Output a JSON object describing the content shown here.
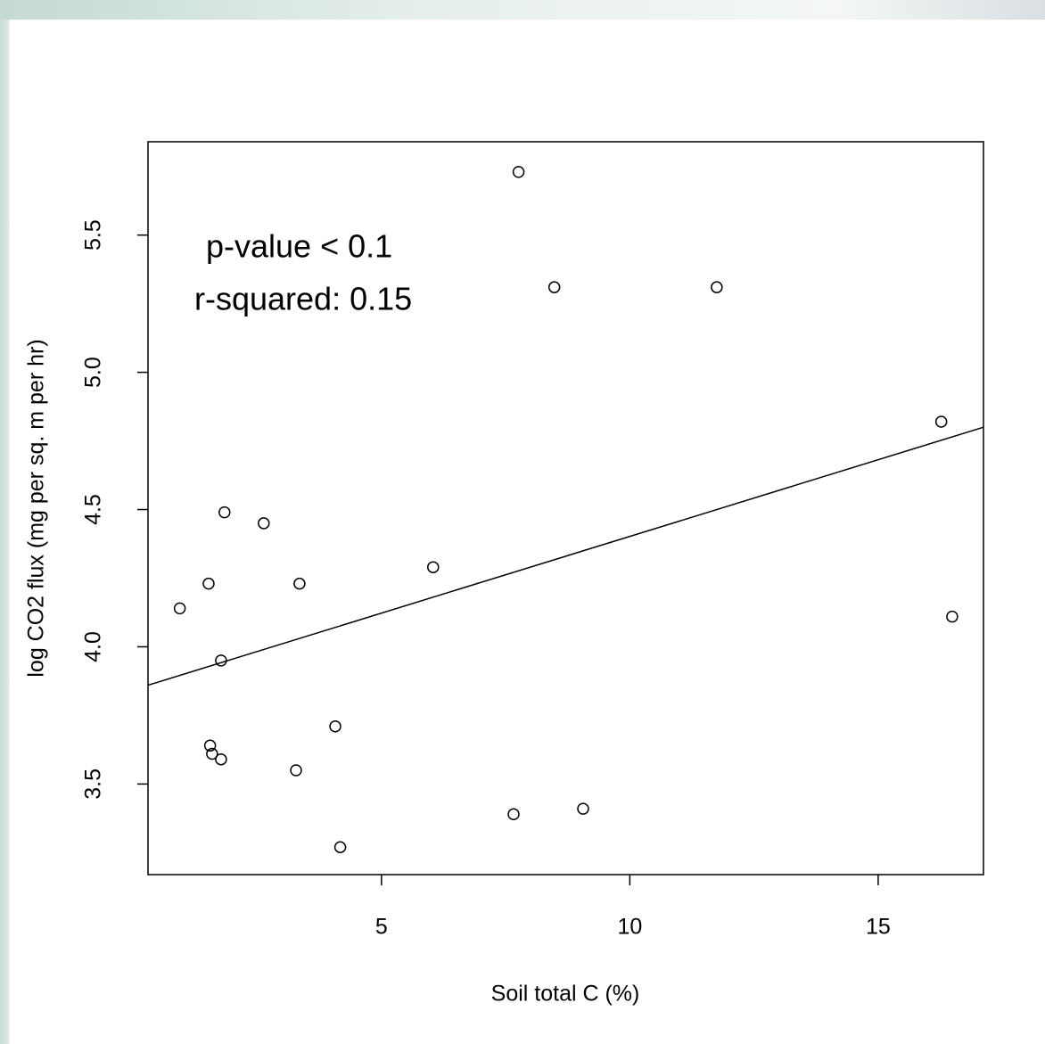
{
  "chart_data": {
    "type": "scatter",
    "xlabel": "Soil total C (%)",
    "ylabel": "log CO2 flux (mg per sq. m per hr)",
    "annotations": [
      "p-value < 0.1",
      "r-squared: 0.15"
    ],
    "xlim": [
      0.3,
      17.12
    ],
    "xticks": [
      5,
      10,
      15
    ],
    "ylim": [
      3.17,
      5.84
    ],
    "yticks": [
      3.5,
      {
        "value": 4,
        "label": "4.0"
      },
      4.5,
      {
        "value": 5,
        "label": "5.0"
      },
      5.5
    ],
    "color": "#000000",
    "x": [
      7.76,
      8.48,
      11.75,
      16.27,
      16.49,
      1.84,
      2.63,
      6.04,
      1.52,
      3.35,
      0.94,
      1.77,
      4.07,
      1.55,
      1.59,
      1.77,
      3.28,
      7.66,
      9.06,
      4.17
    ],
    "y": [
      5.73,
      5.31,
      5.31,
      4.82,
      4.11,
      4.49,
      4.45,
      4.29,
      4.23,
      4.23,
      4.14,
      3.95,
      3.71,
      3.64,
      3.61,
      3.59,
      3.55,
      3.39,
      3.41,
      3.27
    ],
    "fit_line": {
      "x": [
        0.3,
        17.12
      ],
      "y": [
        3.86,
        4.8
      ]
    }
  }
}
